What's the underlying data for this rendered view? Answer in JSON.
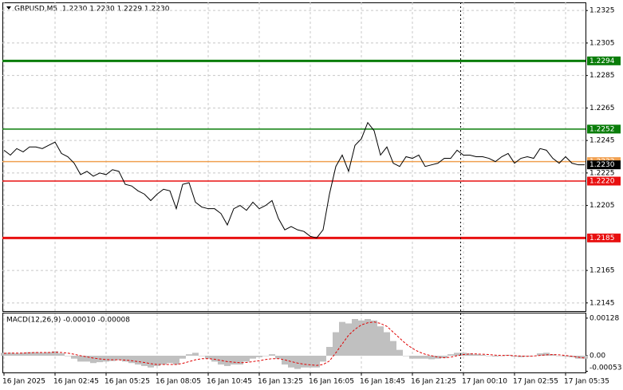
{
  "chart_data": [
    {
      "type": "line",
      "title": "GBPUSD,M5  1.2230 1.2230 1.2229 1.2230",
      "categories": [
        "16 Jan 2025",
        null,
        null,
        null,
        null,
        null,
        null,
        null,
        "16 Jan 02:45",
        null,
        null,
        null,
        null,
        null,
        null,
        null,
        "16 Jan 05:25",
        null,
        null,
        null,
        null,
        null,
        null,
        null,
        "16 Jan 08:05",
        null,
        null,
        null,
        null,
        null,
        null,
        null,
        "16 Jan 10:45",
        null,
        null,
        null,
        null,
        null,
        null,
        null,
        "16 Jan 13:25",
        null,
        null,
        null,
        null,
        null,
        null,
        null,
        "16 Jan 16:05",
        null,
        null,
        null,
        null,
        null,
        null,
        null,
        "16 Jan 18:45",
        null,
        null,
        null,
        null,
        null,
        null,
        null,
        "16 Jan 21:25",
        null,
        null,
        null,
        null,
        null,
        null,
        null,
        "17 Jan 00:10",
        null,
        null,
        null,
        null,
        null,
        null,
        null,
        "17 Jan 02:55",
        null,
        null,
        null,
        null,
        null,
        null,
        null,
        "17 Jan 05:35",
        null,
        null,
        null
      ],
      "series": [
        {
          "color": "#000000",
          "values": [
            1.2239,
            1.2236,
            1.224,
            1.2238,
            1.2241,
            1.2241,
            1.224,
            1.2242,
            1.2244,
            1.2237,
            1.2235,
            1.2231,
            1.2224,
            1.2226,
            1.2223,
            1.2225,
            1.2224,
            1.2227,
            1.2226,
            1.2218,
            1.2217,
            1.2214,
            1.2212,
            1.2208,
            1.2212,
            1.2215,
            1.2214,
            1.2203,
            1.2218,
            1.2219,
            1.2207,
            1.2204,
            1.2203,
            1.2203,
            1.22,
            1.2193,
            1.2203,
            1.2205,
            1.2202,
            1.2207,
            1.2203,
            1.2205,
            1.2208,
            1.2197,
            1.219,
            1.2192,
            1.219,
            1.2189,
            1.2186,
            1.2185,
            1.219,
            1.2212,
            1.2229,
            1.2236,
            1.2226,
            1.2242,
            1.2246,
            1.2256,
            1.2251,
            1.2236,
            1.2241,
            1.2231,
            1.2229,
            1.2235,
            1.2234,
            1.2236,
            1.2229,
            1.223,
            1.2231,
            1.2234,
            1.2234,
            1.2239,
            1.2236,
            1.2236,
            1.2235,
            1.2235,
            1.2234,
            1.2232,
            1.2235,
            1.2237,
            1.2231,
            1.2234,
            1.2235,
            1.2234,
            1.224,
            1.2239,
            1.2234,
            1.2231,
            1.2235,
            1.2231,
            1.223,
            1.223
          ]
        }
      ],
      "price_label": {
        "value": 1.223,
        "label": "1.2230"
      },
      "levels": [
        {
          "value": 1.2294,
          "label": "1.2294",
          "color": "#0a7d0a",
          "style": "thick"
        },
        {
          "value": 1.2252,
          "label": "1.2252",
          "color": "#0a7d0a",
          "style": "thin"
        },
        {
          "value": 1.2232,
          "label": "1.2232",
          "color": "#f0a050",
          "style": "thin"
        },
        {
          "value": 1.222,
          "label": "1.2220",
          "color": "#e81010",
          "style": "thin"
        },
        {
          "value": 1.2185,
          "label": "1.2185",
          "color": "#e81010",
          "style": "thick"
        }
      ],
      "ylim": [
        1.214,
        1.233
      ],
      "yticks": [
        1.2325,
        1.2305,
        1.2285,
        1.2265,
        1.2245,
        1.2225,
        1.2205,
        1.2165,
        1.2145
      ],
      "grid": true
    },
    {
      "type": "macd",
      "title": "MACD(12,26,9) -0.00010 -0.00008",
      "series": [
        {
          "type": "bar",
          "color": "#c0c0c0",
          "values": [
            0.0001,
            0.0001,
            8e-05,
            0.0001,
            0.00012,
            0.00012,
            0.0001,
            0.00012,
            0.00015,
            8e-05,
            0,
            -0.0001,
            -0.0002,
            -0.0002,
            -0.00025,
            -0.00022,
            -0.0002,
            -0.00018,
            -0.00015,
            -0.0002,
            -0.00025,
            -0.0003,
            -0.00035,
            -0.0004,
            -0.00035,
            -0.0003,
            -0.00025,
            -0.0003,
            -0.0001,
            5e-05,
            0.0001,
            0,
            -0.0001,
            -0.0002,
            -0.0003,
            -0.00035,
            -0.0003,
            -0.0003,
            -0.0002,
            -0.0001,
            -5e-05,
            0,
            5e-05,
            -0.0001,
            -0.0003,
            -0.0004,
            -0.00045,
            -0.0004,
            -0.0004,
            -0.0004,
            -0.0002,
            0.0003,
            0.0008,
            0.00115,
            0.0011,
            0.00125,
            0.0012,
            0.00125,
            0.0012,
            0.001,
            0.0008,
            0.0005,
            0.0002,
            0,
            -0.0001,
            -0.0001,
            -0.0001,
            -0.00012,
            -0.0001,
            -8e-05,
            5e-05,
            0.0001,
            0.0001,
            8e-05,
            5e-05,
            3e-05,
            0,
            -3e-05,
            0,
            3e-05,
            -3e-05,
            -5e-05,
            -3e-05,
            0,
            8e-05,
            0.0001,
            5e-05,
            0,
            -3e-05,
            -5e-05,
            -0.0001,
            -0.0001
          ]
        },
        {
          "type": "line",
          "color": "#e00000",
          "dash": true,
          "values": [
            8e-05,
            9e-05,
            9e-05,
            9e-05,
            0.0001,
            0.00011,
            0.00011,
            0.00011,
            0.00012,
            0.00011,
            9e-05,
            5e-05,
            0,
            -4e-05,
            -8e-05,
            -0.00011,
            -0.00013,
            -0.00014,
            -0.00014,
            -0.00015,
            -0.00017,
            -0.0002,
            -0.00023,
            -0.00027,
            -0.0003,
            -0.0003,
            -0.0003,
            -0.0003,
            -0.00026,
            -0.0002,
            -0.00014,
            -0.0001,
            -0.0001,
            -0.00012,
            -0.00016,
            -0.0002,
            -0.00022,
            -0.00024,
            -0.00023,
            -0.0002,
            -0.00017,
            -0.00013,
            -0.0001,
            -0.0001,
            -0.00014,
            -0.0002,
            -0.00025,
            -0.00029,
            -0.00031,
            -0.00033,
            -0.0003,
            -0.00018,
            0.0001,
            0.0004,
            0.0007,
            0.0009,
            0.00105,
            0.00112,
            0.00115,
            0.0011,
            0.001,
            0.0008,
            0.0006,
            0.0004,
            0.00025,
            0.00013,
            5e-05,
            0,
            -5e-05,
            -7e-05,
            -5e-05,
            0,
            4e-05,
            6e-05,
            6e-05,
            5e-05,
            4e-05,
            2e-05,
            1e-05,
            1e-05,
            0,
            -1e-05,
            -2e-05,
            -1e-05,
            1e-05,
            3e-05,
            4e-05,
            3e-05,
            1e-05,
            -2e-05,
            -5e-05,
            -8e-05
          ]
        }
      ],
      "ylim": [
        -0.00057,
        0.00144
      ],
      "yticks": [
        0.00128,
        {
          "value": 0,
          "label": "0.00"
        },
        -0.00053
      ]
    }
  ]
}
